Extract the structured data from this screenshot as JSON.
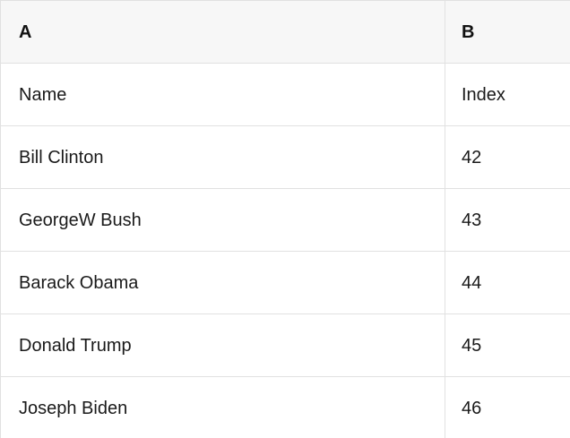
{
  "table": {
    "header": [
      "A",
      "B"
    ],
    "rows": [
      [
        "Name",
        "Index"
      ],
      [
        "Bill Clinton",
        "42"
      ],
      [
        "GeorgeW Bush",
        "43"
      ],
      [
        "Barack Obama",
        "44"
      ],
      [
        "Donald Trump",
        "45"
      ],
      [
        "Joseph Biden",
        "46"
      ]
    ]
  },
  "colors": {
    "header_bg": "#f7f7f7",
    "row_bg": "#ffffff",
    "border": "#e1e1e1",
    "text": "#1a1a1a"
  }
}
